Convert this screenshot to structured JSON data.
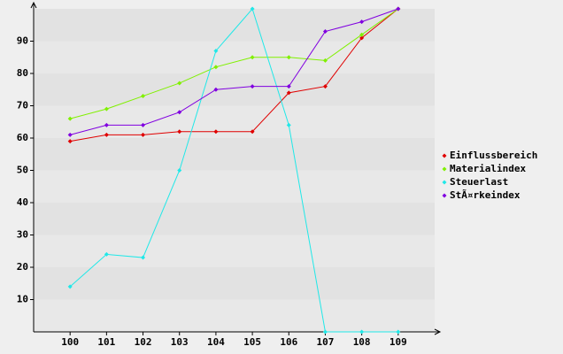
{
  "chart_data": {
    "type": "line",
    "x": [
      100,
      101,
      102,
      103,
      104,
      105,
      106,
      107,
      108,
      109
    ],
    "xlim": [
      99,
      110
    ],
    "xticks": [
      100,
      101,
      102,
      103,
      104,
      105,
      106,
      107,
      108,
      109
    ],
    "ylim": [
      0,
      100
    ],
    "yticks": [
      10,
      20,
      30,
      40,
      50,
      60,
      70,
      80,
      90
    ],
    "grid": true,
    "legend": "right",
    "series": [
      {
        "name": "Einflussbereich",
        "color": "#e00000",
        "values": [
          59,
          61,
          61,
          62,
          62,
          62,
          74,
          76,
          91,
          100
        ]
      },
      {
        "name": "Materialindex",
        "color": "#80f000",
        "values": [
          66,
          69,
          73,
          77,
          82,
          85,
          85,
          84,
          92,
          100
        ]
      },
      {
        "name": "Steuerlast",
        "color": "#20e8e8",
        "values": [
          14,
          24,
          23,
          50,
          87,
          100,
          64,
          0,
          0,
          0
        ]
      },
      {
        "name": "StÃ¤rkeindex",
        "color": "#8000e0",
        "values": [
          61,
          64,
          64,
          68,
          75,
          76,
          76,
          93,
          96,
          100
        ]
      }
    ]
  }
}
